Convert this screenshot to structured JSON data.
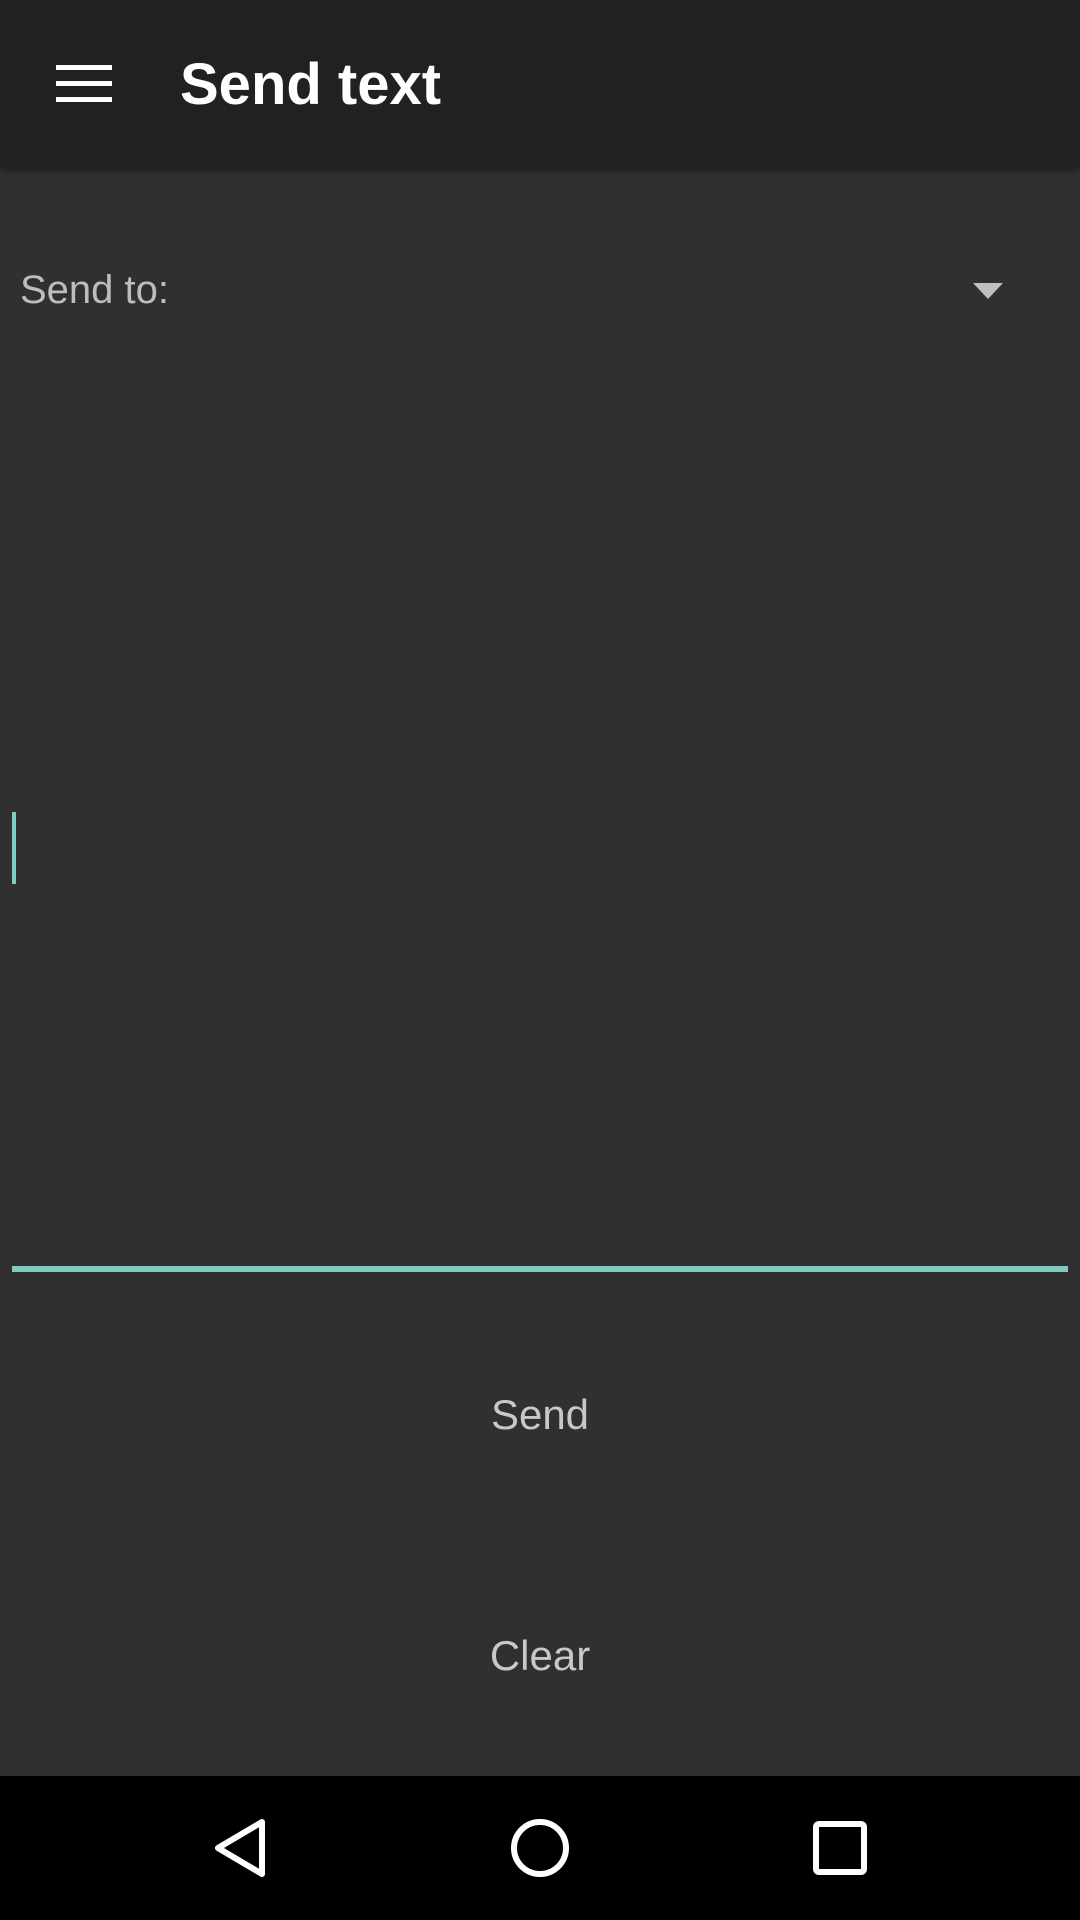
{
  "app_bar": {
    "title": "Send text",
    "menu_icon": "hamburger-menu-icon"
  },
  "send_to": {
    "label": "Send to:",
    "selected_value": "",
    "dropdown_icon": "dropdown-arrow-icon"
  },
  "message": {
    "value": "",
    "accent_color": "#80cbc4"
  },
  "actions": {
    "send_label": "Send",
    "clear_label": "Clear"
  },
  "nav_bar": {
    "back_icon": "back-triangle-icon",
    "home_icon": "home-circle-icon",
    "recents_icon": "recents-square-icon"
  },
  "colors": {
    "app_bar_background": "#212121",
    "background": "#303030",
    "nav_bar_background": "#000000"
  }
}
